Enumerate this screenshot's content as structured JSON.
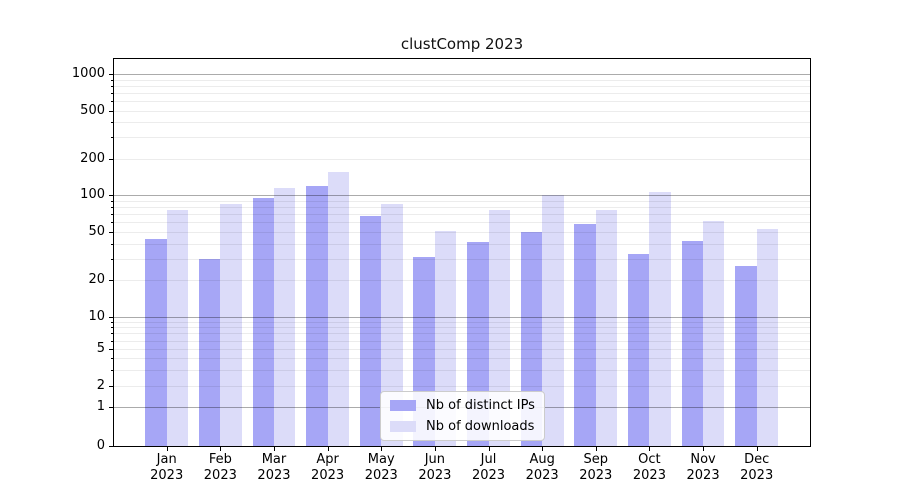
{
  "chart_data": {
    "type": "bar",
    "title": "clustComp 2023",
    "categories": [
      "Jan 2023",
      "Feb 2023",
      "Mar 2023",
      "Apr 2023",
      "May 2023",
      "Jun 2023",
      "Jul 2023",
      "Aug 2023",
      "Sep 2023",
      "Oct 2023",
      "Nov 2023",
      "Dec 2023"
    ],
    "series": [
      {
        "name": "Nb of distinct IPs",
        "color": "#a6a6f6",
        "values": [
          44,
          30,
          95,
          120,
          67,
          31,
          41,
          50,
          58,
          33,
          42,
          26
        ]
      },
      {
        "name": "Nb of downloads",
        "color": "#dcdcf9",
        "values": [
          76,
          84,
          115,
          155,
          84,
          51,
          75,
          100,
          76,
          107,
          61,
          53
        ]
      }
    ],
    "xlabel": "",
    "ylabel": "",
    "yscale": "symlog",
    "yticks": [
      0,
      1,
      2,
      5,
      10,
      20,
      50,
      100,
      200,
      500,
      1000
    ],
    "ylim": [
      0,
      1300
    ],
    "grid": true,
    "grid_over_bars": true,
    "legend_position": "lower center"
  },
  "colors": {
    "major_grid": "#bdbdbd",
    "minor_grid": "#ececec",
    "axis": "#000000",
    "background": "#ffffff"
  }
}
